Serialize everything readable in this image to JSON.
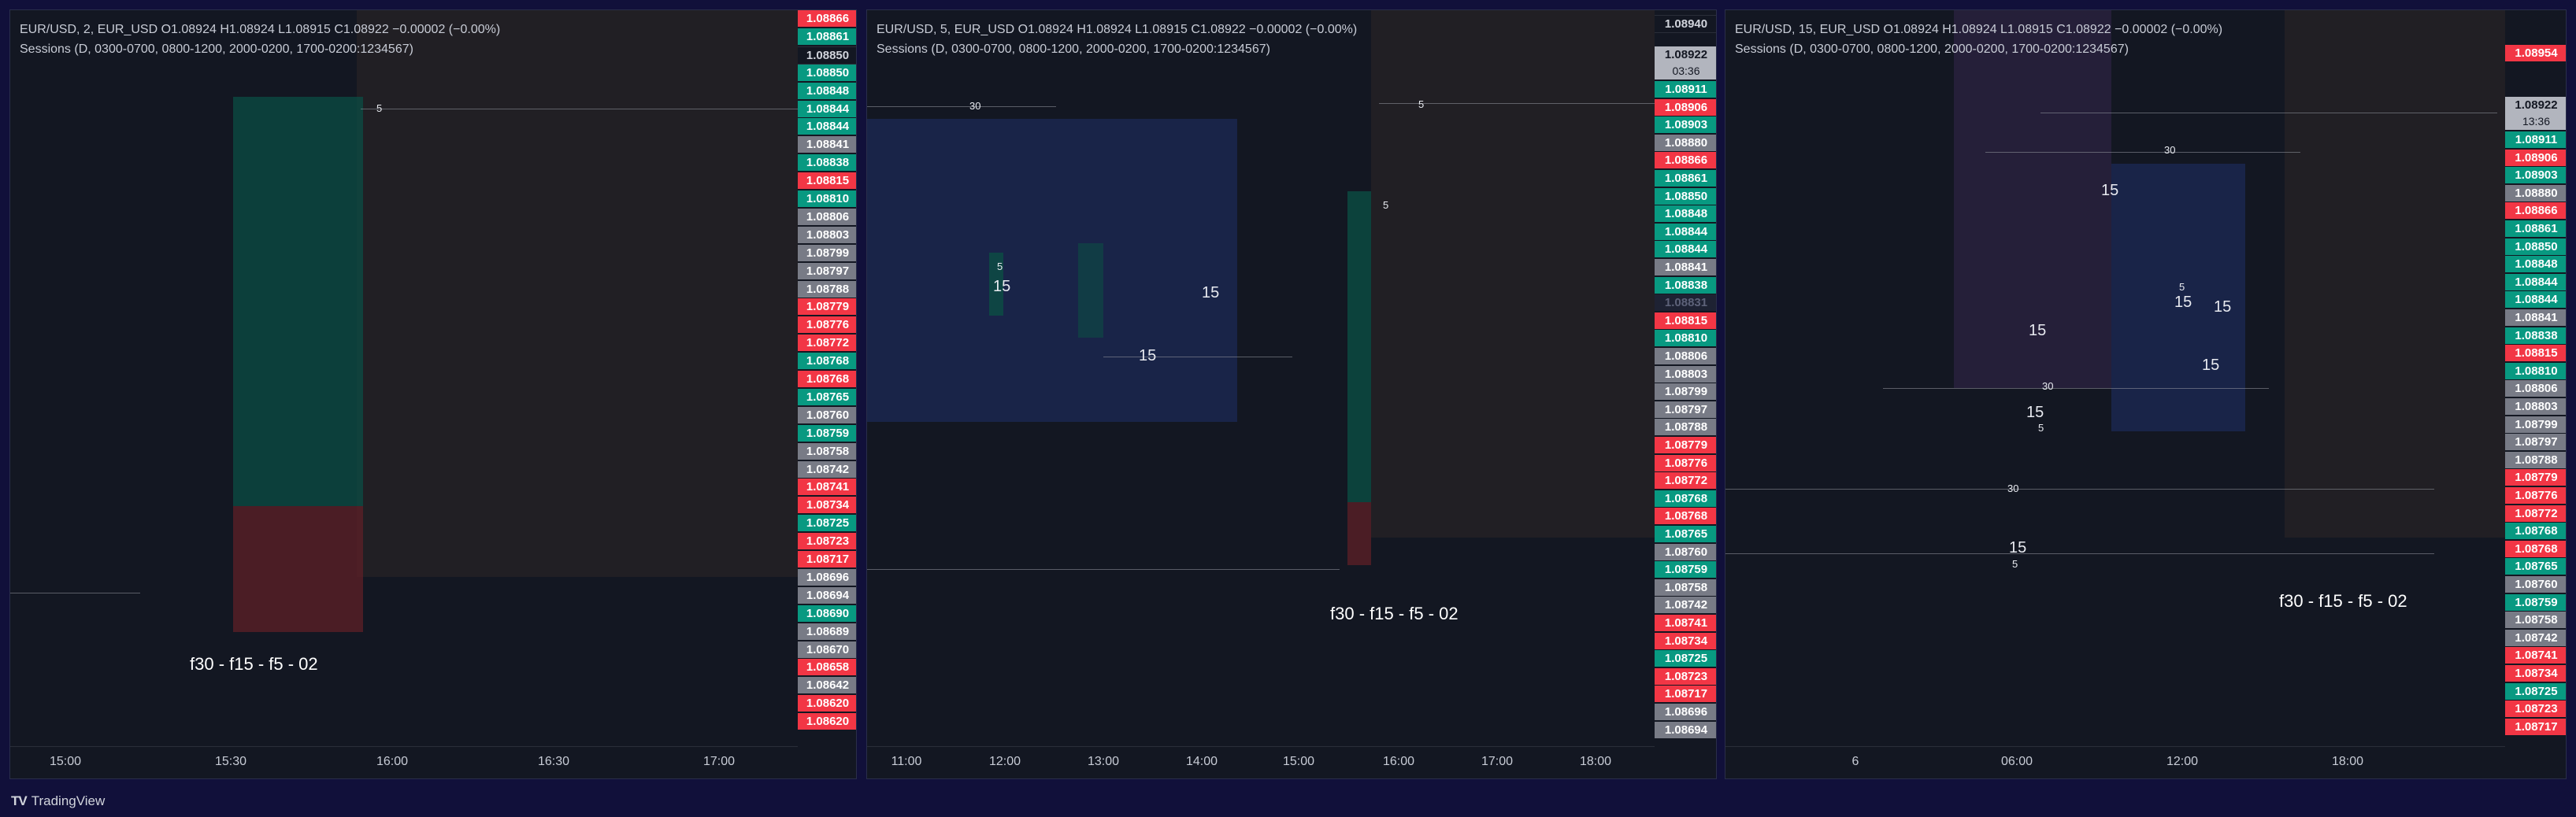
{
  "brand": {
    "logo": "TV",
    "name": "TradingView"
  },
  "panels": [
    {
      "header": "EUR/USD, 2, EUR_USD  O1.08924  H1.08924  L1.08915  C1.08922  −0.00002 (−0.00%)",
      "sessions": "Sessions (D, 0300-0700, 0800-1200, 2000-0200, 1700-0200:1234567)",
      "note": "f30 - f15 - f5 - 02",
      "times": [
        "15:00",
        "15:30",
        "16:00",
        "16:30",
        "17:00"
      ],
      "labels": [
        "5"
      ],
      "ladder": [
        {
          "text": "1.08866",
          "c": "down"
        },
        {
          "text": "1.08861",
          "c": "up"
        },
        {
          "text": "1.08850",
          "c": "dark"
        },
        {
          "text": "1.08850",
          "c": "up"
        },
        {
          "text": "1.08848",
          "c": "up"
        },
        {
          "text": "1.08844",
          "c": "up"
        },
        {
          "text": "1.08844",
          "c": "up"
        },
        {
          "text": "1.08841",
          "c": "neutral"
        },
        {
          "text": "1.08838",
          "c": "up"
        },
        {
          "text": "1.08815",
          "c": "down"
        },
        {
          "text": "1.08810",
          "c": "up"
        },
        {
          "text": "1.08806",
          "c": "neutral"
        },
        {
          "text": "1.08803",
          "c": "neutral"
        },
        {
          "text": "1.08799",
          "c": "neutral"
        },
        {
          "text": "1.08797",
          "c": "neutral"
        },
        {
          "text": "1.08788",
          "c": "neutral"
        },
        {
          "text": "1.08779",
          "c": "down"
        },
        {
          "text": "1.08776",
          "c": "down"
        },
        {
          "text": "1.08772",
          "c": "down"
        },
        {
          "text": "1.08768",
          "c": "up"
        },
        {
          "text": "1.08768",
          "c": "down"
        },
        {
          "text": "1.08765",
          "c": "up"
        },
        {
          "text": "1.08760",
          "c": "neutral"
        },
        {
          "text": "1.08759",
          "c": "up"
        },
        {
          "text": "1.08758",
          "c": "neutral"
        },
        {
          "text": "1.08742",
          "c": "neutral"
        },
        {
          "text": "1.08741",
          "c": "down"
        },
        {
          "text": "1.08734",
          "c": "down"
        },
        {
          "text": "1.08725",
          "c": "up"
        },
        {
          "text": "1.08723",
          "c": "down"
        },
        {
          "text": "1.08717",
          "c": "down"
        },
        {
          "text": "1.08696",
          "c": "neutral"
        },
        {
          "text": "1.08694",
          "c": "neutral"
        },
        {
          "text": "1.08690",
          "c": "up"
        },
        {
          "text": "1.08689",
          "c": "neutral"
        },
        {
          "text": "1.08670",
          "c": "neutral"
        },
        {
          "text": "1.08658",
          "c": "down"
        },
        {
          "text": "1.08642",
          "c": "neutral"
        },
        {
          "text": "1.08620",
          "c": "down"
        },
        {
          "text": "1.08620",
          "c": "down"
        }
      ]
    },
    {
      "header": "EUR/USD, 5, EUR_USD  O1.08924  H1.08924  L1.08915  C1.08922  −0.00002 (−0.00%)",
      "sessions": "Sessions (D, 0300-0700, 0800-1200, 2000-0200, 1700-0200:1234567)",
      "note": "f30 - f15 - f5 - 02",
      "times": [
        "11:00",
        "12:00",
        "13:00",
        "14:00",
        "15:00",
        "16:00",
        "17:00",
        "18:00"
      ],
      "labels": [
        "30",
        "5",
        "15",
        "15",
        "15",
        "5",
        "5"
      ],
      "ladder_top": "1.08940",
      "current": {
        "price": "1.08922",
        "countdown": "03:36"
      },
      "ladder": [
        {
          "text": "1.08911",
          "c": "up"
        },
        {
          "text": "1.08906",
          "c": "down"
        },
        {
          "text": "1.08903",
          "c": "up"
        },
        {
          "text": "1.08880",
          "c": "neutral"
        },
        {
          "text": "1.08866",
          "c": "down"
        },
        {
          "text": "1.08861",
          "c": "up"
        },
        {
          "text": "1.08850",
          "c": "up"
        },
        {
          "text": "1.08848",
          "c": "up"
        },
        {
          "text": "1.08844",
          "c": "up"
        },
        {
          "text": "1.08844",
          "c": "up"
        },
        {
          "text": "1.08841",
          "c": "neutral"
        },
        {
          "text": "1.08838",
          "c": "up"
        },
        {
          "text": "1.08831",
          "c": "dim"
        },
        {
          "text": "1.08815",
          "c": "down"
        },
        {
          "text": "1.08810",
          "c": "up"
        },
        {
          "text": "1.08806",
          "c": "neutral"
        },
        {
          "text": "1.08803",
          "c": "neutral"
        },
        {
          "text": "1.08799",
          "c": "neutral"
        },
        {
          "text": "1.08797",
          "c": "neutral"
        },
        {
          "text": "1.08788",
          "c": "neutral"
        },
        {
          "text": "1.08779",
          "c": "down"
        },
        {
          "text": "1.08776",
          "c": "down"
        },
        {
          "text": "1.08772",
          "c": "down"
        },
        {
          "text": "1.08768",
          "c": "up"
        },
        {
          "text": "1.08768",
          "c": "down"
        },
        {
          "text": "1.08765",
          "c": "up"
        },
        {
          "text": "1.08760",
          "c": "neutral"
        },
        {
          "text": "1.08759",
          "c": "up"
        },
        {
          "text": "1.08758",
          "c": "neutral"
        },
        {
          "text": "1.08742",
          "c": "neutral"
        },
        {
          "text": "1.08741",
          "c": "down"
        },
        {
          "text": "1.08734",
          "c": "down"
        },
        {
          "text": "1.08725",
          "c": "up"
        },
        {
          "text": "1.08723",
          "c": "down"
        },
        {
          "text": "1.08717",
          "c": "down"
        },
        {
          "text": "1.08696",
          "c": "neutral"
        },
        {
          "text": "1.08694",
          "c": "neutral"
        }
      ]
    },
    {
      "header": "EUR/USD, 15, EUR_USD  O1.08924  H1.08924  L1.08915  C1.08922  −0.00002 (−0.00%)",
      "sessions": "Sessions (D, 0300-0700, 0800-1200, 2000-0200, 1700-0200:1234567)",
      "note": "f30 - f15 - f5 - 02",
      "times": [
        "6",
        "06:00",
        "12:00",
        "18:00"
      ],
      "labels": [
        "30",
        "15",
        "15",
        "15",
        "5",
        "15",
        "15",
        "30",
        "15",
        "5",
        "30",
        "15",
        "5"
      ],
      "ladder_top": "1.08954",
      "current": {
        "price": "1.08922",
        "countdown": "13:36"
      },
      "ladder": [
        {
          "text": "1.08911",
          "c": "up"
        },
        {
          "text": "1.08906",
          "c": "down"
        },
        {
          "text": "1.08903",
          "c": "up"
        },
        {
          "text": "1.08880",
          "c": "neutral"
        },
        {
          "text": "1.08866",
          "c": "down"
        },
        {
          "text": "1.08861",
          "c": "up"
        },
        {
          "text": "1.08850",
          "c": "up"
        },
        {
          "text": "1.08848",
          "c": "up"
        },
        {
          "text": "1.08844",
          "c": "up"
        },
        {
          "text": "1.08844",
          "c": "up"
        },
        {
          "text": "1.08841",
          "c": "neutral"
        },
        {
          "text": "1.08838",
          "c": "up"
        },
        {
          "text": "1.08815",
          "c": "down"
        },
        {
          "text": "1.08810",
          "c": "up"
        },
        {
          "text": "1.08806",
          "c": "neutral"
        },
        {
          "text": "1.08803",
          "c": "neutral"
        },
        {
          "text": "1.08799",
          "c": "neutral"
        },
        {
          "text": "1.08797",
          "c": "neutral"
        },
        {
          "text": "1.08788",
          "c": "neutral"
        },
        {
          "text": "1.08779",
          "c": "down"
        },
        {
          "text": "1.08776",
          "c": "down"
        },
        {
          "text": "1.08772",
          "c": "down"
        },
        {
          "text": "1.08768",
          "c": "up"
        },
        {
          "text": "1.08768",
          "c": "down"
        },
        {
          "text": "1.08765",
          "c": "up"
        },
        {
          "text": "1.08760",
          "c": "neutral"
        },
        {
          "text": "1.08759",
          "c": "up"
        },
        {
          "text": "1.08758",
          "c": "neutral"
        },
        {
          "text": "1.08742",
          "c": "neutral"
        },
        {
          "text": "1.08741",
          "c": "down"
        },
        {
          "text": "1.08734",
          "c": "down"
        },
        {
          "text": "1.08725",
          "c": "up"
        },
        {
          "text": "1.08723",
          "c": "down"
        },
        {
          "text": "1.08717",
          "c": "down"
        }
      ]
    }
  ],
  "colors": {
    "up": "#089981",
    "down": "#f23645",
    "bull_candle": "#2962ff",
    "bear_candle": "#b2b5be",
    "session_blue": "#1c2a55",
    "session_brown": "#2b2527",
    "session_purple": "#2a2240"
  }
}
